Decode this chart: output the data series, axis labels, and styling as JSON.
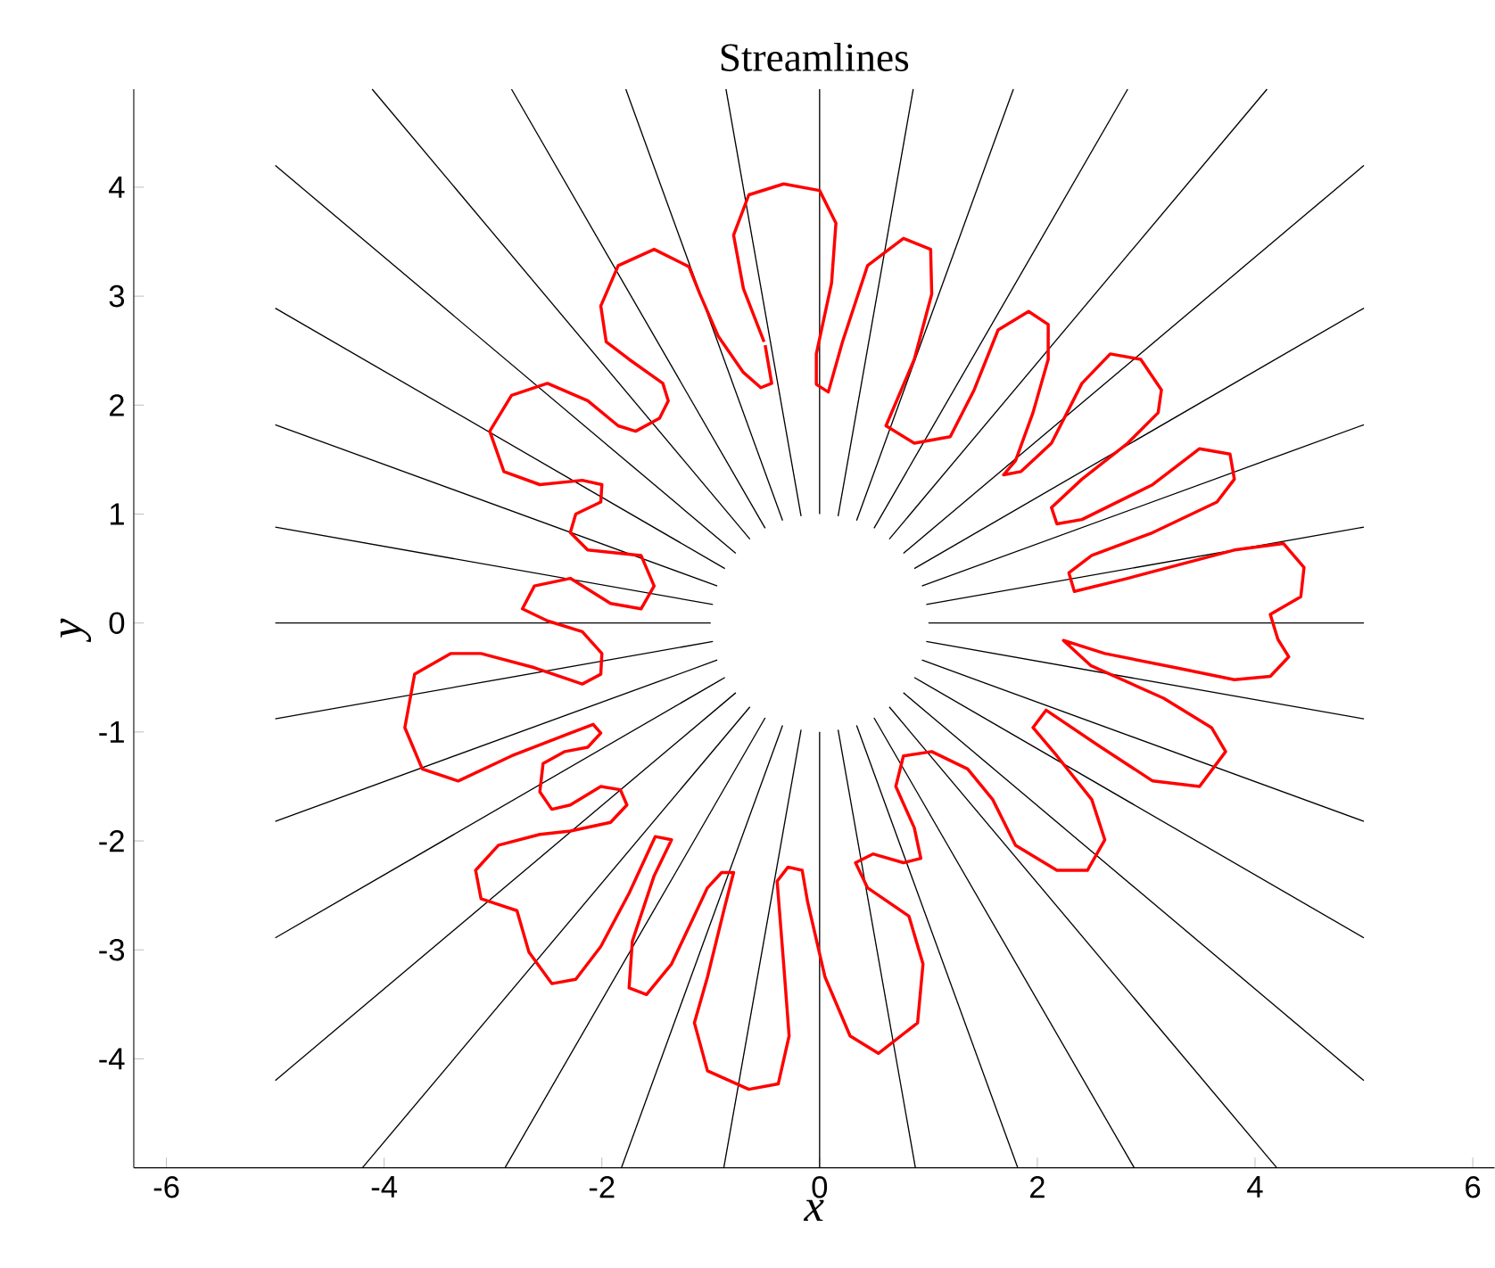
{
  "chart_data": {
    "type": "line",
    "title": "Streamlines",
    "xlabel": "x",
    "ylabel": "y",
    "xlim": [
      -6.3,
      6.2
    ],
    "ylim": [
      -5,
      4.9
    ],
    "xticks": [
      -6,
      -4,
      -2,
      0,
      2,
      4,
      6
    ],
    "yticks": [
      -4,
      -3,
      -2,
      -1,
      0,
      1,
      2,
      3,
      4
    ],
    "marker": "none",
    "line_style": "solid",
    "series": [
      {
        "color": "#000000",
        "x": [
          1,
          5
        ],
        "values": [
          0,
          0
        ]
      },
      {
        "color": "#000000",
        "x": [
          0.98,
          5
        ],
        "values": [
          0.17,
          0.88
        ]
      },
      {
        "color": "#000000",
        "x": [
          0.94,
          5
        ],
        "values": [
          0.34,
          1.82
        ]
      },
      {
        "color": "#000000",
        "x": [
          0.87,
          5
        ],
        "values": [
          0.5,
          2.89
        ]
      },
      {
        "color": "#000000",
        "x": [
          0.77,
          5
        ],
        "values": [
          0.64,
          4.2
        ]
      },
      {
        "color": "#000000",
        "x": [
          0.64,
          4.11
        ],
        "values": [
          0.77,
          4.9
        ]
      },
      {
        "color": "#000000",
        "x": [
          0.5,
          2.83
        ],
        "values": [
          0.87,
          4.9
        ]
      },
      {
        "color": "#000000",
        "x": [
          0.34,
          1.78
        ],
        "values": [
          0.94,
          4.9
        ]
      },
      {
        "color": "#000000",
        "x": [
          0.17,
          0.86
        ],
        "values": [
          0.98,
          4.9
        ]
      },
      {
        "color": "#000000",
        "x": [
          0,
          0
        ],
        "values": [
          1,
          4.9
        ]
      },
      {
        "color": "#000000",
        "x": [
          -0.17,
          -0.86
        ],
        "values": [
          0.98,
          4.9
        ]
      },
      {
        "color": "#000000",
        "x": [
          -0.34,
          -1.78
        ],
        "values": [
          0.94,
          4.9
        ]
      },
      {
        "color": "#000000",
        "x": [
          -0.5,
          -2.83
        ],
        "values": [
          0.87,
          4.9
        ]
      },
      {
        "color": "#000000",
        "x": [
          -0.64,
          -4.11
        ],
        "values": [
          0.77,
          4.9
        ]
      },
      {
        "color": "#000000",
        "x": [
          -0.77,
          -5
        ],
        "values": [
          0.64,
          4.2
        ]
      },
      {
        "color": "#000000",
        "x": [
          -0.87,
          -5
        ],
        "values": [
          0.5,
          2.89
        ]
      },
      {
        "color": "#000000",
        "x": [
          -0.94,
          -5
        ],
        "values": [
          0.34,
          1.82
        ]
      },
      {
        "color": "#000000",
        "x": [
          -0.98,
          -5
        ],
        "values": [
          0.17,
          0.88
        ]
      },
      {
        "color": "#000000",
        "x": [
          -1,
          -5
        ],
        "values": [
          0,
          0
        ]
      },
      {
        "color": "#000000",
        "x": [
          -0.98,
          -5
        ],
        "values": [
          -0.17,
          -0.88
        ]
      },
      {
        "color": "#000000",
        "x": [
          -0.94,
          -5
        ],
        "values": [
          -0.34,
          -1.82
        ]
      },
      {
        "color": "#000000",
        "x": [
          -0.87,
          -5
        ],
        "values": [
          -0.5,
          -2.89
        ]
      },
      {
        "color": "#000000",
        "x": [
          -0.77,
          -5
        ],
        "values": [
          -0.64,
          -4.2
        ]
      },
      {
        "color": "#000000",
        "x": [
          -0.64,
          -4.2
        ],
        "values": [
          -0.77,
          -5
        ]
      },
      {
        "color": "#000000",
        "x": [
          -0.5,
          -2.89
        ],
        "values": [
          -0.87,
          -5
        ]
      },
      {
        "color": "#000000",
        "x": [
          -0.34,
          -1.82
        ],
        "values": [
          -0.94,
          -5
        ]
      },
      {
        "color": "#000000",
        "x": [
          -0.17,
          -0.88
        ],
        "values": [
          -0.98,
          -5
        ]
      },
      {
        "color": "#000000",
        "x": [
          0,
          0
        ],
        "values": [
          -1,
          -5
        ]
      },
      {
        "color": "#000000",
        "x": [
          0.17,
          0.88
        ],
        "values": [
          -0.98,
          -5
        ]
      },
      {
        "color": "#000000",
        "x": [
          0.34,
          1.82
        ],
        "values": [
          -0.94,
          -5
        ]
      },
      {
        "color": "#000000",
        "x": [
          0.5,
          2.89
        ],
        "values": [
          -0.87,
          -5
        ]
      },
      {
        "color": "#000000",
        "x": [
          0.64,
          4.2
        ],
        "values": [
          -0.77,
          -5
        ]
      },
      {
        "color": "#000000",
        "x": [
          0.77,
          5
        ],
        "values": [
          -0.64,
          -4.2
        ]
      },
      {
        "color": "#000000",
        "x": [
          0.87,
          5
        ],
        "values": [
          -0.5,
          -2.89
        ]
      },
      {
        "color": "#000000",
        "x": [
          0.94,
          5
        ],
        "values": [
          -0.34,
          -1.82
        ]
      },
      {
        "color": "#000000",
        "x": [
          0.98,
          5
        ],
        "values": [
          -0.17,
          -0.88
        ]
      },
      {
        "color": "#ff0000",
        "x": [
          -0.51,
          -0.7,
          -0.79,
          -0.65,
          -0.33,
          0,
          0.15,
          0.11,
          -0.03,
          -0.03,
          0.08,
          0.21,
          0.44,
          0.77,
          1.02,
          1.03,
          0.87,
          0.61,
          0.87,
          1.2,
          1.42,
          1.64,
          1.92,
          2.1,
          2.1,
          1.96,
          1.8,
          1.69,
          1.85,
          2.13,
          2.41,
          2.67,
          2.95,
          3.14,
          3.11,
          2.83,
          2.41,
          2.13,
          2.18,
          2.41,
          3.06,
          3.49,
          3.77,
          3.81,
          3.65,
          3.06,
          2.5,
          2.29,
          2.34,
          2.83,
          3.81,
          4.26,
          4.45,
          4.42,
          4.14,
          4.21,
          4.31,
          4.14,
          3.81,
          3.27,
          2.62,
          2.24,
          2.49,
          3.16,
          3.6,
          3.73,
          3.49,
          3.06,
          2.57,
          2.08,
          1.96,
          2.18,
          2.5,
          2.62,
          2.46,
          2.18,
          1.8,
          1.59,
          1.36,
          1.03,
          0.77,
          0.7,
          0.87,
          0.93,
          0.77,
          0.49,
          0.33,
          0.44,
          0.82,
          0.95,
          0.9,
          0.54,
          0.28,
          0.05,
          -0.11,
          -0.16,
          -0.29,
          -0.39,
          -0.33,
          -0.28,
          -0.38,
          -0.65,
          -1.03,
          -1.15,
          -1.03,
          -0.87,
          -0.79,
          -0.9,
          -1.03,
          -1.36,
          -1.59,
          -1.75,
          -1.72,
          -1.52,
          -1.36,
          -1.51,
          -1.75,
          -2.01,
          -2.24,
          -2.46,
          -2.67,
          -2.78,
          -3.11,
          -3.16,
          -2.95,
          -2.57,
          -2.29,
          -1.92,
          -1.77,
          -1.83,
          -2.01,
          -2.29,
          -2.46,
          -2.57,
          -2.54,
          -2.34,
          -2.13,
          -2.01,
          -2.08,
          -2.29,
          -2.83,
          -3.32,
          -3.65,
          -3.81,
          -3.72,
          -3.39,
          -3.11,
          -2.62,
          -2.18,
          -2.01,
          -2,
          -2.18,
          -2.5,
          -2.73,
          -2.62,
          -2.29,
          -1.92,
          -1.64,
          -1.52,
          -1.64,
          -2.13,
          -2.29,
          -2.24,
          -2.01,
          -2,
          -2.18,
          -2.57,
          -2.9,
          -3.03,
          -2.83,
          -2.5,
          -2.13,
          -1.85,
          -1.69,
          -1.47,
          -1.39,
          -1.44,
          -1.75,
          -1.96,
          -2.01,
          -1.85,
          -1.52,
          -1.2,
          -1.1,
          -0.93,
          -0.7,
          -0.54,
          -0.44,
          -0.5
        ],
        "values": [
          2.58,
          3.07,
          3.56,
          3.93,
          4.03,
          3.97,
          3.67,
          3.12,
          2.47,
          2.19,
          2.12,
          2.58,
          3.28,
          3.53,
          3.43,
          3.02,
          2.42,
          1.81,
          1.65,
          1.71,
          2.14,
          2.69,
          2.86,
          2.74,
          2.42,
          1.93,
          1.49,
          1.36,
          1.39,
          1.65,
          2.2,
          2.47,
          2.42,
          2.14,
          1.93,
          1.65,
          1.32,
          1.06,
          0.91,
          0.95,
          1.27,
          1.6,
          1.55,
          1.32,
          1.11,
          0.83,
          0.62,
          0.46,
          0.29,
          0.41,
          0.67,
          0.73,
          0.51,
          0.24,
          0.08,
          -0.15,
          -0.31,
          -0.49,
          -0.52,
          -0.41,
          -0.28,
          -0.16,
          -0.39,
          -0.69,
          -0.96,
          -1.18,
          -1.5,
          -1.45,
          -1.13,
          -0.8,
          -0.96,
          -1.22,
          -1.62,
          -1.99,
          -2.27,
          -2.27,
          -2.04,
          -1.62,
          -1.34,
          -1.18,
          -1.22,
          -1.5,
          -1.88,
          -2.16,
          -2.2,
          -2.12,
          -2.2,
          -2.43,
          -2.69,
          -3.13,
          -3.67,
          -3.95,
          -3.79,
          -3.25,
          -2.56,
          -2.27,
          -2.24,
          -2.37,
          -3.13,
          -3.79,
          -4.23,
          -4.28,
          -4.11,
          -3.67,
          -3.25,
          -2.6,
          -2.29,
          -2.29,
          -2.43,
          -3.13,
          -3.41,
          -3.35,
          -2.92,
          -2.32,
          -1.99,
          -1.96,
          -2.48,
          -2.97,
          -3.27,
          -3.31,
          -3.02,
          -2.64,
          -2.53,
          -2.27,
          -2.04,
          -1.94,
          -1.91,
          -1.83,
          -1.67,
          -1.53,
          -1.5,
          -1.67,
          -1.71,
          -1.55,
          -1.29,
          -1.18,
          -1.14,
          -1.01,
          -0.93,
          -1.01,
          -1.22,
          -1.45,
          -1.34,
          -0.96,
          -0.47,
          -0.28,
          -0.28,
          -0.41,
          -0.56,
          -0.47,
          -0.28,
          -0.08,
          0.02,
          0.13,
          0.34,
          0.41,
          0.18,
          0.13,
          0.34,
          0.62,
          0.67,
          0.83,
          1,
          1.11,
          1.27,
          1.31,
          1.27,
          1.39,
          1.76,
          2.09,
          2.2,
          2.04,
          1.81,
          1.76,
          1.88,
          2.04,
          2.2,
          2.42,
          2.58,
          2.91,
          3.28,
          3.43,
          3.27,
          3.02,
          2.63,
          2.3,
          2.16,
          2.2,
          2.55
        ]
      }
    ]
  }
}
